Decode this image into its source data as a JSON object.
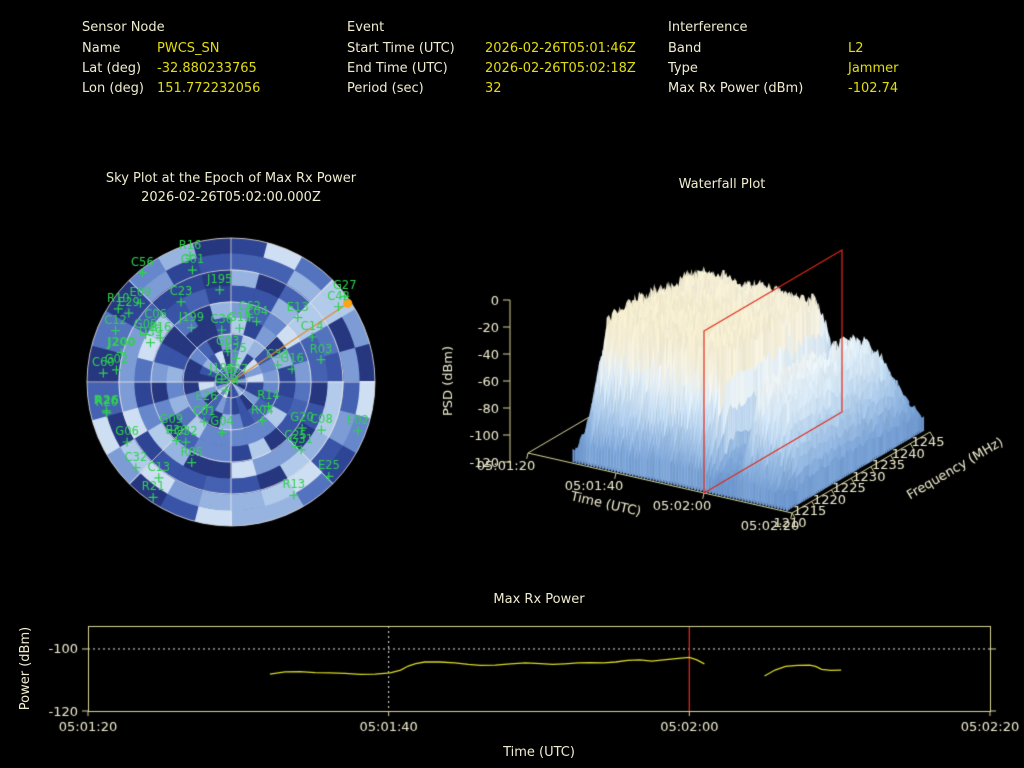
{
  "header": {
    "sections": [
      {
        "title": "Sensor Node",
        "rows": [
          {
            "label": "Name",
            "value": "PWCS_SN"
          },
          {
            "label": "Lat (deg)",
            "value": "-32.880233765"
          },
          {
            "label": "Lon (deg)",
            "value": "151.772232056"
          }
        ]
      },
      {
        "title": "Event",
        "rows": [
          {
            "label": "Start Time (UTC)",
            "value": "2026-02-26T05:01:46Z"
          },
          {
            "label": "End Time (UTC)",
            "value": "2026-02-26T05:02:18Z"
          },
          {
            "label": "Period (sec)",
            "value": "32"
          }
        ]
      },
      {
        "title": "Interference",
        "rows": [
          {
            "label": "Band",
            "value": "L2"
          },
          {
            "label": "Type",
            "value": "Jammer"
          },
          {
            "label": "Max Rx Power (dBm)",
            "value": "-102.74"
          }
        ]
      }
    ]
  },
  "colors": {
    "background": "#000000",
    "pale_text": "#f0ecd0",
    "value_yellow": "#e3dc10",
    "axis_khaki": "#d8d59a",
    "trace_yellow": "#d9d926",
    "epoch_red": "#e02818",
    "satellite_green": "#2fd24f",
    "bearing_orange": "#dd8f2e",
    "bearing_dot": "#ffa316",
    "grid_white": "#e9e9e9"
  },
  "chart_data": [
    {
      "id": "sky_plot",
      "type": "scatter",
      "projection": "polar_sky",
      "title": "Sky Plot at the Epoch of Max Rx Power",
      "subtitle": "2026-02-26T05:02:00.000Z",
      "elevation_rings_deg": [
        0,
        20,
        40,
        60,
        80
      ],
      "azimuth_spoke_step_deg": 45,
      "interference_bearing": {
        "az_deg": 56,
        "el_deg": 2
      },
      "heatmap_palette": [
        "#26367f",
        "#2e4494",
        "#3953a6",
        "#4562b2",
        "#5473bf",
        "#6687cb",
        "#7d9cd6",
        "#97b4e1",
        "#b3cbea",
        "#cfdff3"
      ],
      "bright_streak": {
        "az_deg": 56,
        "half_width_deg": 10,
        "max_el_deg": 45
      },
      "satellites": [
        {
          "name": "R16",
          "az": 342,
          "el": 7
        },
        {
          "name": "G01",
          "az": 341,
          "el": 16
        },
        {
          "name": "C56",
          "az": 321,
          "el": 2
        },
        {
          "name": "J195",
          "az": 353,
          "el": 32
        },
        {
          "name": "C23",
          "az": 328,
          "el": 31
        },
        {
          "name": "R10",
          "az": 303,
          "el": 6
        },
        {
          "name": "E09",
          "az": 311,
          "el": 15
        },
        {
          "name": "E29",
          "az": 304,
          "el": 13
        },
        {
          "name": "C06",
          "az": 307,
          "el": 31
        },
        {
          "name": "J199",
          "az": 324,
          "el": 48
        },
        {
          "name": "C36",
          "az": 350,
          "el": 57
        },
        {
          "name": "G15",
          "az": 9,
          "el": 56
        },
        {
          "name": "C62",
          "az": 16,
          "el": 48
        },
        {
          "name": "C04",
          "az": 23,
          "el": 49
        },
        {
          "name": "C12",
          "az": 294,
          "el": 11
        },
        {
          "name": "G05",
          "az": 299,
          "el": 29
        },
        {
          "name": "E16",
          "az": 302,
          "el": 38
        },
        {
          "name": "D39",
          "az": 296,
          "el": 34
        },
        {
          "name": "J200",
          "az": 285,
          "el": 19,
          "bold": true
        },
        {
          "name": "C60",
          "az": 274,
          "el": 10
        },
        {
          "name": "G02",
          "az": 276,
          "el": 18
        },
        {
          "name": "G03",
          "az": 354,
          "el": 71
        },
        {
          "name": "E25",
          "az": 12,
          "el": 75
        },
        {
          "name": "E07",
          "az": 72,
          "el": 86
        },
        {
          "name": "J196",
          "az": 287,
          "el": 84
        },
        {
          "name": "C38",
          "az": 212,
          "el": 84
        },
        {
          "name": "E26",
          "az": 224,
          "el": 68
        },
        {
          "name": "C01",
          "az": 214,
          "el": 60
        },
        {
          "name": "G04",
          "az": 190,
          "el": 58
        },
        {
          "name": "R14",
          "az": 123,
          "el": 62
        },
        {
          "name": "R04",
          "az": 141,
          "el": 59
        },
        {
          "name": "G20",
          "az": 123,
          "el": 37
        },
        {
          "name": "C08",
          "az": 118,
          "el": 26
        },
        {
          "name": "E02",
          "az": 111,
          "el": 5
        },
        {
          "name": "C25",
          "az": 135,
          "el": 33
        },
        {
          "name": "G31",
          "az": 134,
          "el": 29
        },
        {
          "name": "E25",
          "az": 134,
          "el": 5
        },
        {
          "name": "R13",
          "az": 151,
          "el": 9
        },
        {
          "name": "C33",
          "az": 70,
          "el": 59
        },
        {
          "name": "G16",
          "az": 78,
          "el": 51
        },
        {
          "name": "C14",
          "az": 61,
          "el": 32
        },
        {
          "name": "R03",
          "az": 76,
          "el": 32
        },
        {
          "name": "E13",
          "az": 46,
          "el": 32
        },
        {
          "name": "C42",
          "az": 55,
          "el": 8
        },
        {
          "name": "G27",
          "az": 53,
          "el": 1
        },
        {
          "name": "R26",
          "az": 257,
          "el": 10,
          "bold": true
        },
        {
          "name": "R20",
          "az": 256,
          "el": 10
        },
        {
          "name": "G06",
          "az": 240,
          "el": 15
        },
        {
          "name": "G09",
          "az": 231,
          "el": 42
        },
        {
          "name": "E36",
          "az": 223,
          "el": 40
        },
        {
          "name": "G32",
          "az": 217,
          "el": 43
        },
        {
          "name": "R05",
          "az": 206,
          "el": 34
        },
        {
          "name": "C32",
          "az": 228,
          "el": 10
        },
        {
          "name": "C13",
          "az": 217,
          "el": 15
        },
        {
          "name": "R21",
          "az": 214,
          "el": 3
        }
      ]
    },
    {
      "id": "waterfall",
      "type": "surface3d",
      "title": "Waterfall Plot",
      "time_label": "Time (UTC)",
      "freq_label": "Frequency (MHz)",
      "psd_label": "PSD (dBm)",
      "time_ticks": [
        "05:01:20",
        "05:01:40",
        "05:02:00",
        "05:02:20"
      ],
      "freq_ticks_mhz": [
        1210,
        1215,
        1220,
        1225,
        1230,
        1235,
        1240,
        1245
      ],
      "psd_ticks_dbm": [
        0,
        -20,
        -40,
        -60,
        -80,
        -100,
        -120
      ],
      "freq_range_mhz": [
        1210,
        1245
      ],
      "psd_range_dbm": [
        -120,
        0
      ],
      "plateau_psd_dbm": -20,
      "epoch_marker": {
        "time": "05:02:00",
        "color": "#e02818"
      },
      "signal_time_envelope": [
        [
          0,
          0
        ],
        [
          0.16,
          0
        ],
        [
          0.22,
          1
        ],
        [
          0.66,
          0.97
        ],
        [
          0.7,
          0.2
        ],
        [
          0.76,
          0.15
        ],
        [
          0.8,
          0.75
        ],
        [
          0.9,
          0.6
        ],
        [
          0.945,
          0.3
        ],
        [
          0.99,
          0
        ]
      ],
      "signal_freq_envelope": [
        [
          0,
          0.05
        ],
        [
          0.06,
          0.35
        ],
        [
          0.15,
          1
        ],
        [
          0.45,
          1
        ],
        [
          0.58,
          0.97
        ],
        [
          0.63,
          0.78
        ],
        [
          0.68,
          0.97
        ],
        [
          0.85,
          0.9
        ],
        [
          0.93,
          0.55
        ],
        [
          1,
          0.22
        ]
      ],
      "surface_palette": [
        [
          -120,
          "#5d88c6"
        ],
        [
          -98,
          "#7fa7d8"
        ],
        [
          -78,
          "#a9c8e9"
        ],
        [
          -58,
          "#d0e4f4"
        ],
        [
          -44,
          "#e9f2f7"
        ],
        [
          -34,
          "#f2efe2"
        ],
        [
          -20,
          "#f4edd2"
        ],
        [
          -10,
          "#f5eecd"
        ]
      ]
    },
    {
      "id": "max_rx_power",
      "type": "line",
      "title": "Max Rx Power",
      "xlabel": "Time (UTC)",
      "ylabel": "Power (dBm)",
      "x_ticks": [
        "05:01:20",
        "05:01:40",
        "05:02:00",
        "05:02:20"
      ],
      "x_range_sec": [
        0,
        60
      ],
      "y_ticks": [
        -100,
        -120
      ],
      "ylim": [
        -120,
        -92.6
      ],
      "threshold_line_dbm": -100,
      "dotted_vline_sec": 20,
      "epoch_marker_sec": 40,
      "segments": [
        [
          [
            12.1,
            -108.1
          ],
          [
            13.1,
            -107.4
          ],
          [
            14.1,
            -107.3
          ],
          [
            15.1,
            -107.6
          ],
          [
            16.1,
            -107.7
          ],
          [
            17.1,
            -107.9
          ],
          [
            18.1,
            -108.2
          ],
          [
            19.1,
            -108.1
          ],
          [
            20.1,
            -107.7
          ],
          [
            20.8,
            -106.8
          ],
          [
            21.3,
            -105.5
          ],
          [
            21.8,
            -104.7
          ],
          [
            22.4,
            -104.2
          ],
          [
            23.4,
            -104.2
          ],
          [
            24.4,
            -104.5
          ],
          [
            25.3,
            -105.0
          ],
          [
            26.1,
            -105.3
          ],
          [
            27.1,
            -105.2
          ],
          [
            28.1,
            -104.8
          ],
          [
            29.1,
            -104.5
          ],
          [
            30.1,
            -104.7
          ],
          [
            30.9,
            -105.0
          ],
          [
            31.7,
            -104.8
          ],
          [
            32.6,
            -104.5
          ],
          [
            33.4,
            -104.4
          ],
          [
            34.3,
            -104.5
          ],
          [
            35.1,
            -104.2
          ],
          [
            35.9,
            -103.7
          ],
          [
            36.7,
            -103.5
          ],
          [
            37.5,
            -103.9
          ],
          [
            38.3,
            -103.5
          ],
          [
            39.1,
            -103.1
          ],
          [
            40.0,
            -102.74
          ],
          [
            40.5,
            -103.5
          ],
          [
            41.0,
            -104.8
          ]
        ],
        [
          [
            45.0,
            -108.7
          ],
          [
            45.7,
            -106.8
          ],
          [
            46.4,
            -105.6
          ],
          [
            47.2,
            -105.3
          ],
          [
            48.0,
            -105.2
          ],
          [
            48.4,
            -105.6
          ],
          [
            48.8,
            -106.6
          ],
          [
            49.4,
            -106.9
          ],
          [
            50.1,
            -106.8
          ]
        ]
      ]
    }
  ]
}
